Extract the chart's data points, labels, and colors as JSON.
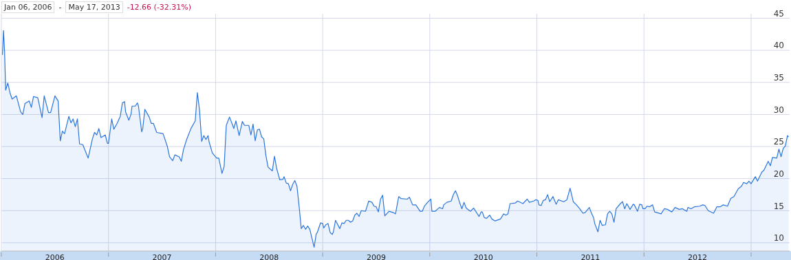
{
  "chart_data": {
    "type": "area",
    "annotations": [
      "Jan 06, 2006",
      "-",
      "May 17, 2013",
      "-12.66 (-32.31%)"
    ],
    "xlim": [
      2006,
      2013.36
    ],
    "ylim": [
      8.7,
      45.7
    ],
    "yticks": [
      10,
      15,
      20,
      25,
      30,
      35,
      40,
      45
    ],
    "xticks": [
      {
        "value": 2006,
        "label": null
      },
      {
        "value": 2006.5,
        "label": "2006"
      },
      {
        "value": 2007,
        "label": null
      },
      {
        "value": 2007.5,
        "label": "2007"
      },
      {
        "value": 2008,
        "label": null
      },
      {
        "value": 2008.5,
        "label": "2008"
      },
      {
        "value": 2009,
        "label": null
      },
      {
        "value": 2009.5,
        "label": "2009"
      },
      {
        "value": 2010,
        "label": null
      },
      {
        "value": 2010.5,
        "label": "2010"
      },
      {
        "value": 2011,
        "label": null
      },
      {
        "value": 2011.5,
        "label": "2011"
      },
      {
        "value": 2012,
        "label": null
      },
      {
        "value": 2012.5,
        "label": "2012"
      },
      {
        "value": 2013,
        "label": null
      }
    ],
    "grid": true,
    "series": [
      {
        "color": "#2a75dd",
        "x": [
          2006.01,
          2006.02,
          2006.03,
          2006.04,
          2006.06,
          2006.08,
          2006.1,
          2006.14,
          2006.18,
          2006.2,
          2006.22,
          2006.26,
          2006.28,
          2006.3,
          2006.34,
          2006.38,
          2006.4,
          2006.44,
          2006.46,
          2006.5,
          2006.53,
          2006.55,
          2006.57,
          2006.59,
          2006.63,
          2006.65,
          2006.67,
          2006.69,
          2006.71,
          2006.73,
          2006.76,
          2006.81,
          2006.85,
          2006.87,
          2006.89,
          2006.91,
          2006.93,
          2006.97,
          2006.99,
          2007.0,
          2007.03,
          2007.05,
          2007.08,
          2007.11,
          2007.13,
          2007.15,
          2007.16,
          2007.19,
          2007.21,
          2007.22,
          2007.25,
          2007.27,
          2007.28,
          2007.31,
          2007.32,
          2007.34,
          2007.38,
          2007.4,
          2007.42,
          2007.45,
          2007.51,
          2007.55,
          2007.57,
          2007.6,
          2007.62,
          2007.66,
          2007.68,
          2007.7,
          2007.73,
          2007.77,
          2007.81,
          2007.83,
          2007.85,
          2007.87,
          2007.89,
          2007.91,
          2007.93,
          2007.94,
          2007.97,
          2008.01,
          2008.03,
          2008.06,
          2008.08,
          2008.1,
          2008.13,
          2008.16,
          2008.17,
          2008.19,
          2008.22,
          2008.25,
          2008.27,
          2008.31,
          2008.33,
          2008.35,
          2008.37,
          2008.39,
          2008.41,
          2008.43,
          2008.45,
          2008.47,
          2008.49,
          2008.53,
          2008.55,
          2008.57,
          2008.6,
          2008.63,
          2008.64,
          2008.66,
          2008.68,
          2008.7,
          2008.72,
          2008.74,
          2008.76,
          2008.78,
          2008.8,
          2008.82,
          2008.84,
          2008.86,
          2008.88,
          2008.9,
          2008.92,
          2008.94,
          2008.95,
          2008.98,
          2009.0,
          2009.01,
          2009.03,
          2009.05,
          2009.07,
          2009.09,
          2009.1,
          2009.12,
          2009.16,
          2009.18,
          2009.2,
          2009.22,
          2009.24,
          2009.26,
          2009.28,
          2009.3,
          2009.32,
          2009.34,
          2009.36,
          2009.4,
          2009.43,
          2009.46,
          2009.48,
          2009.5,
          2009.52,
          2009.54,
          2009.56,
          2009.58,
          2009.62,
          2009.66,
          2009.68,
          2009.71,
          2009.73,
          2009.79,
          2009.81,
          2009.84,
          2009.87,
          2009.91,
          2009.93,
          2009.95,
          2009.98,
          2010.01,
          2010.02,
          2010.05,
          2010.07,
          2010.09,
          2010.12,
          2010.13,
          2010.16,
          2010.2,
          2010.22,
          2010.24,
          2010.26,
          2010.28,
          2010.3,
          2010.32,
          2010.34,
          2010.38,
          2010.41,
          2010.46,
          2010.48,
          2010.49,
          2010.51,
          2010.53,
          2010.56,
          2010.58,
          2010.61,
          2010.66,
          2010.69,
          2010.71,
          2010.73,
          2010.75,
          2010.8,
          2010.82,
          2010.87,
          2010.91,
          2010.93,
          2010.97,
          2010.99,
          2011.01,
          2011.02,
          2011.04,
          2011.06,
          2011.08,
          2011.1,
          2011.12,
          2011.15,
          2011.18,
          2011.2,
          2011.25,
          2011.28,
          2011.31,
          2011.34,
          2011.37,
          2011.4,
          2011.43,
          2011.45,
          2011.49,
          2011.51,
          2011.53,
          2011.54,
          2011.57,
          2011.59,
          2011.61,
          2011.64,
          2011.66,
          2011.68,
          2011.7,
          2011.72,
          2011.74,
          2011.78,
          2011.8,
          2011.82,
          2011.84,
          2011.87,
          2011.9,
          2011.91,
          2011.94,
          2011.96,
          2011.98,
          2011.99,
          2012.01,
          2012.03,
          2012.05,
          2012.08,
          2012.1,
          2012.16,
          2012.19,
          2012.22,
          2012.26,
          2012.29,
          2012.33,
          2012.36,
          2012.4,
          2012.41,
          2012.44,
          2012.47,
          2012.52,
          2012.55,
          2012.57,
          2012.6,
          2012.65,
          2012.68,
          2012.71,
          2012.74,
          2012.78,
          2012.81,
          2012.84,
          2012.88,
          2012.91,
          2012.93,
          2012.96,
          2012.98,
          2013.0,
          2013.04,
          2013.06,
          2013.1,
          2013.12,
          2013.16,
          2013.18,
          2013.2,
          2013.24,
          2013.26,
          2013.28,
          2013.3,
          2013.32,
          2013.34,
          2013.35
        ],
        "values": [
          39.3,
          43.1,
          39.8,
          33.8,
          34.9,
          33.4,
          32.4,
          32.9,
          30.4,
          30.0,
          31.7,
          32.1,
          31.1,
          32.8,
          32.6,
          29.5,
          32.9,
          30.3,
          30.3,
          32.9,
          32.1,
          25.9,
          27.4,
          27.0,
          29.7,
          28.7,
          29.3,
          28.1,
          29.3,
          25.4,
          25.3,
          23.2,
          26.2,
          27.2,
          26.8,
          27.8,
          26.4,
          26.8,
          25.5,
          25.5,
          29.3,
          27.7,
          28.6,
          29.7,
          31.8,
          32.0,
          30.4,
          29.1,
          30.0,
          31.3,
          31.3,
          31.8,
          31.3,
          27.3,
          27.8,
          30.8,
          29.6,
          28.6,
          28.6,
          27.2,
          27.0,
          25.0,
          23.4,
          22.8,
          23.7,
          23.4,
          22.7,
          24.5,
          26.1,
          27.8,
          29.0,
          33.4,
          30.7,
          25.8,
          26.7,
          26.1,
          26.7,
          25.7,
          24.0,
          23.2,
          23.2,
          20.8,
          21.9,
          28.3,
          29.6,
          28.3,
          27.8,
          29.0,
          26.7,
          28.9,
          28.3,
          28.3,
          26.8,
          28.5,
          25.9,
          27.6,
          27.7,
          26.5,
          26.2,
          23.6,
          21.8,
          21.2,
          23.5,
          21.6,
          19.8,
          19.9,
          20.3,
          19.3,
          19.2,
          18.1,
          19.1,
          19.7,
          18.8,
          15.7,
          12.2,
          12.7,
          12.1,
          12.6,
          12.1,
          10.7,
          9.3,
          11.4,
          11.6,
          13.1,
          13.0,
          12.3,
          12.8,
          13.0,
          11.6,
          11.3,
          11.7,
          13.5,
          12.2,
          13.1,
          13.0,
          13.5,
          13.5,
          13.2,
          13.4,
          14.3,
          14.6,
          14.1,
          15.0,
          14.9,
          16.5,
          16.3,
          15.7,
          15.6,
          14.8,
          16.8,
          17.4,
          14.2,
          14.9,
          14.7,
          14.5,
          17.2,
          16.9,
          16.8,
          17.1,
          15.9,
          15.9,
          14.9,
          14.9,
          15.7,
          16.3,
          16.8,
          14.9,
          14.9,
          15.2,
          15.5,
          15.3,
          15.9,
          16.3,
          16.5,
          17.5,
          18.1,
          17.3,
          16.2,
          15.3,
          16.3,
          15.4,
          14.9,
          15.4,
          14.1,
          14.8,
          14.8,
          13.9,
          13.8,
          14.3,
          13.7,
          13.4,
          13.7,
          14.5,
          14.3,
          14.5,
          16.1,
          16.2,
          16.5,
          16.1,
          16.8,
          16.3,
          16.5,
          16.7,
          16.6,
          15.9,
          15.8,
          16.6,
          16.7,
          17.5,
          16.4,
          17.2,
          16.0,
          16.7,
          16.4,
          16.7,
          18.5,
          16.4,
          15.9,
          15.3,
          14.6,
          14.7,
          15.5,
          14.6,
          13.9,
          13.0,
          11.7,
          13.5,
          12.7,
          12.8,
          14.5,
          14.9,
          14.5,
          13.2,
          15.3,
          16.1,
          16.4,
          15.3,
          16.1,
          15.2,
          16.0,
          15.9,
          14.9,
          16.0,
          15.9,
          15.3,
          15.3,
          15.7,
          15.6,
          15.9,
          14.8,
          14.5,
          15.3,
          15.2,
          14.8,
          15.5,
          15.2,
          15.3,
          14.9,
          15.5,
          15.3,
          15.6,
          15.7,
          15.9,
          15.8,
          15.0,
          14.6,
          15.6,
          15.6,
          15.9,
          15.7,
          16.9,
          17.2,
          18.4,
          18.8,
          19.4,
          19.2,
          19.6,
          19.2,
          20.3,
          19.6,
          21.0,
          21.3,
          22.7,
          22.0,
          23.3,
          23.2,
          24.6,
          23.4,
          24.7,
          25.1,
          26.7,
          26.5
        ]
      }
    ]
  }
}
